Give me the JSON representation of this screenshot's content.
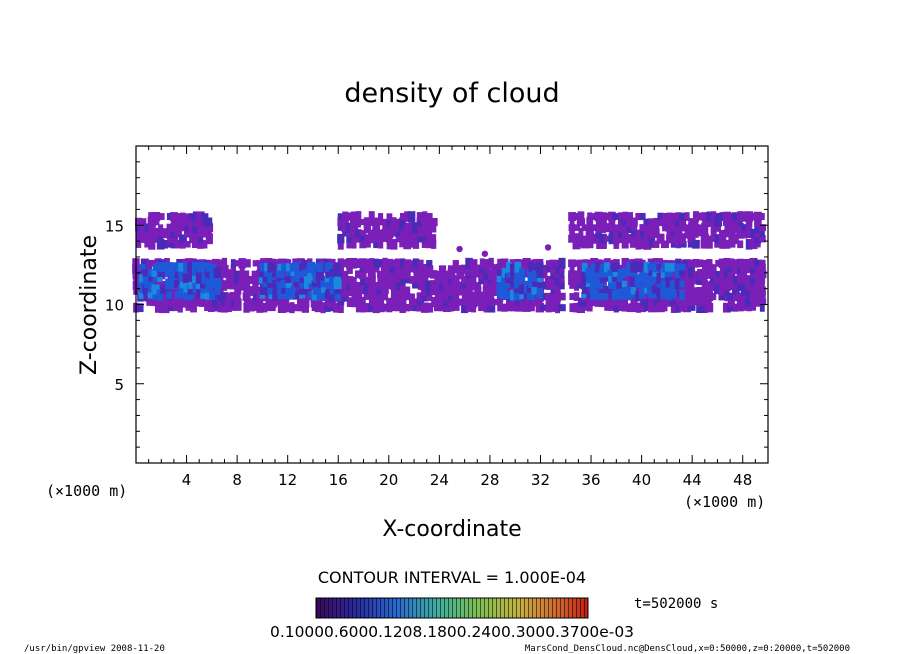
{
  "chart_data": {
    "type": "heatmap",
    "title": "density of cloud",
    "xlabel": "X-coordinate",
    "ylabel": "Z-coordinate",
    "x_unit_left": "(×1000 m)",
    "x_unit_right": "(×1000 m)",
    "xlim": [
      0,
      50
    ],
    "ylim": [
      0,
      20
    ],
    "x_ticks": [
      "4",
      "8",
      "12",
      "16",
      "20",
      "24",
      "28",
      "32",
      "36",
      "40",
      "44",
      "48"
    ],
    "y_ticks": [
      "5",
      "10",
      "15"
    ],
    "contour_interval_label": "CONTOUR INTERVAL = 1.000E-04",
    "time_label": "t=502000 s",
    "colorbar_labels_text": "0.10000.6000.1208.1800.2400.3000.3700e-03",
    "colorbar_colors": [
      "#3a0a5a",
      "#4a1a8a",
      "#2a3aa8",
      "#1e6ad0",
      "#2aa0c0",
      "#3ac080",
      "#80c040",
      "#c8c040",
      "#d08030",
      "#d04020",
      "#c02010"
    ],
    "cloud_colors": {
      "low": "#7a1fb8",
      "mid": "#4a2ab8",
      "high": "#1e5ad8",
      "peak": "#1a8ae0"
    },
    "cloud_regions": [
      {
        "name": "upper-band",
        "z_range": [
          13.8,
          15.6
        ],
        "x_segments": [
          [
            0.2,
            2.0
          ],
          [
            2.3,
            6.0
          ],
          [
            16.2,
            23.8
          ],
          [
            34.5,
            49.8
          ]
        ],
        "level": "low"
      },
      {
        "name": "main-band",
        "z_range": [
          9.8,
          12.6
        ],
        "x_segments": [
          [
            0.0,
            12.0
          ],
          [
            12.0,
            34.0
          ],
          [
            34.5,
            49.9
          ]
        ],
        "level": "low"
      },
      {
        "name": "core-1",
        "z_range": [
          10.6,
          12.4
        ],
        "x_segments": [
          [
            0.5,
            6.5
          ],
          [
            10.0,
            16.0
          ],
          [
            28.8,
            32.0
          ],
          [
            35.5,
            43.5
          ]
        ],
        "level": "high"
      }
    ],
    "footer_left": "/usr/bin/gpview  2008-11-20",
    "footer_right": "MarsCond_DensCloud.nc@DensCloud,x=0:50000,z=0:20000,t=502000"
  }
}
